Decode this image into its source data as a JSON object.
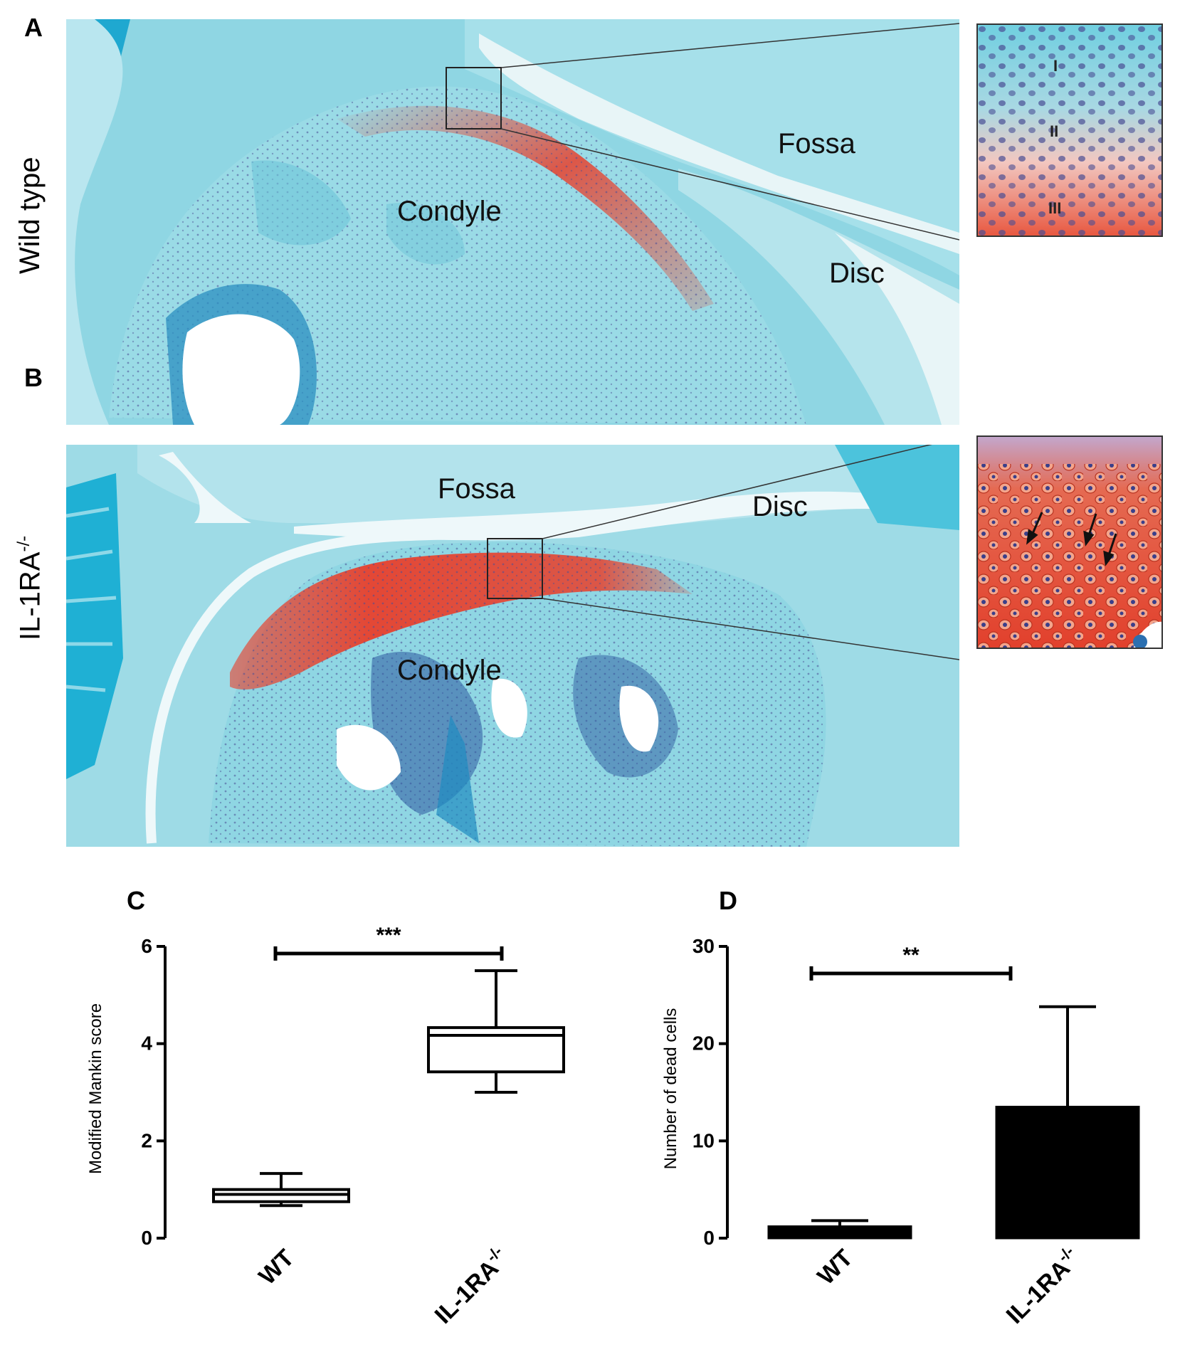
{
  "panels": {
    "A": {
      "letter": "A",
      "row_label": "Wild type",
      "labels": {
        "fossa": "Fossa",
        "condyle": "Condyle",
        "disc": "Disc"
      },
      "inset_zones": [
        "I",
        "II",
        "III"
      ]
    },
    "B": {
      "letter": "B",
      "row_label_main": "IL-1RA",
      "row_label_sup": "-/-",
      "labels": {
        "fossa": "Fossa",
        "disc": "Disc",
        "condyle": "Condyle"
      }
    }
  },
  "colors": {
    "fast_green": "#3cbfd2",
    "safranin_o": "#e8402c",
    "nuclei": "#3a3f8a",
    "bone": "#a8e0e8"
  },
  "chart_data": [
    {
      "panel": "C",
      "type": "box",
      "ylabel": "Modified Mankin score",
      "ylim": [
        0,
        6
      ],
      "yticks": [
        0,
        2,
        4,
        6
      ],
      "categories": [
        {
          "main": "WT",
          "sup": ""
        },
        {
          "main": "IL-1RA",
          "sup": "-/-"
        }
      ],
      "boxes": [
        {
          "min": 0.67,
          "q1": 0.75,
          "median": 0.9,
          "q3": 1.0,
          "max": 1.33
        },
        {
          "min": 3.0,
          "q1": 3.42,
          "median": 4.17,
          "q3": 4.33,
          "max": 5.5
        }
      ],
      "significance": "***"
    },
    {
      "panel": "D",
      "type": "bar",
      "ylabel": "Number of  dead cells",
      "ylim": [
        0,
        30
      ],
      "yticks": [
        0,
        10,
        20,
        30
      ],
      "categories": [
        {
          "main": "WT",
          "sup": ""
        },
        {
          "main": "IL-1RA",
          "sup": "-/-"
        }
      ],
      "values": [
        1.2,
        13.5
      ],
      "error_upper": [
        1.8,
        23.8
      ],
      "significance": "**"
    }
  ]
}
